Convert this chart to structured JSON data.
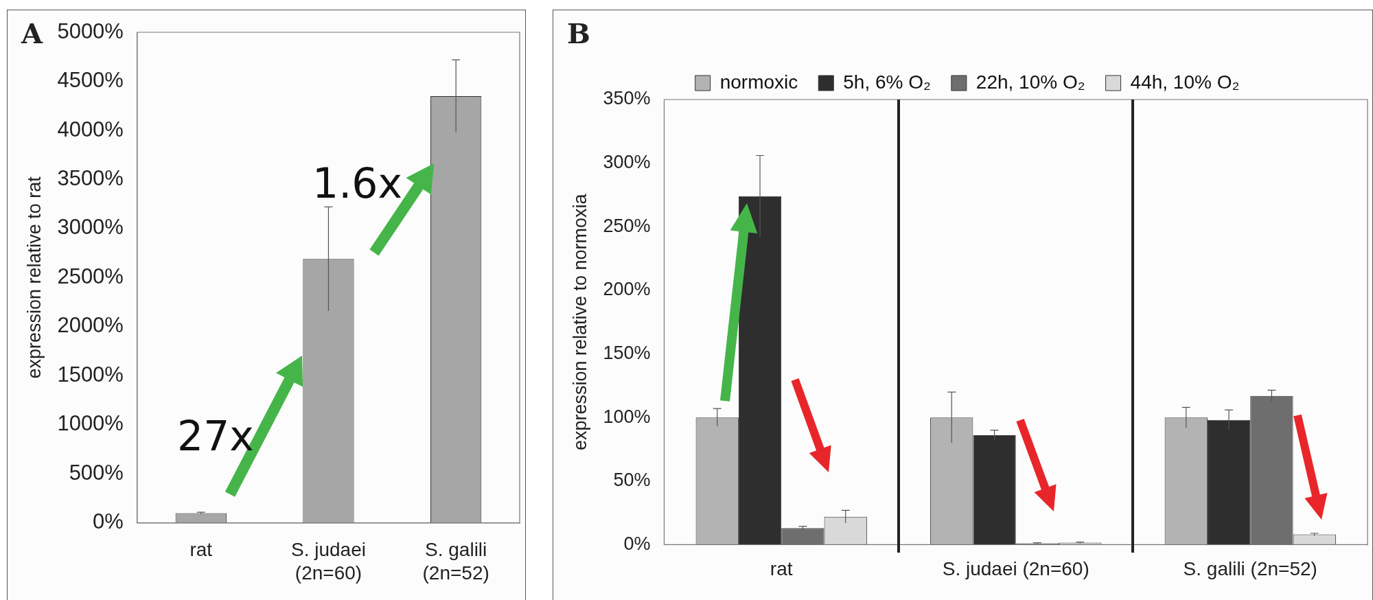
{
  "chart_data": [
    {
      "type": "bar",
      "title": "A",
      "categories": [
        "rat",
        "S. judaei (2n=60)",
        "S. galili (2n=52)"
      ],
      "values": [
        100,
        2690,
        4350
      ],
      "errors": [
        10,
        530,
        370
      ],
      "color": "#a6a6a6",
      "ylabel": "expression relative to rat",
      "ylim": [
        0,
        5000
      ],
      "yticks": [
        {
          "value": 0,
          "label": "0%"
        },
        {
          "value": 500,
          "label": "500%"
        },
        {
          "value": 1000,
          "label": "1000%"
        },
        {
          "value": 1500,
          "label": "1500%"
        },
        {
          "value": 2000,
          "label": "2000%"
        },
        {
          "value": 2500,
          "label": "2500%"
        },
        {
          "value": 3000,
          "label": "3000%"
        },
        {
          "value": 3500,
          "label": "3500%"
        },
        {
          "value": 4000,
          "label": "4000%"
        },
        {
          "value": 4500,
          "label": "4500%"
        },
        {
          "value": 5000,
          "label": "5000%"
        }
      ],
      "grid": false,
      "annotations": [
        "27x",
        "1.6x"
      ]
    },
    {
      "type": "bar",
      "title": "B",
      "categories": [
        "rat",
        "S. judaei (2n=60)",
        "S. galili (2n=52)"
      ],
      "series": [
        {
          "name": "normoxic",
          "color": "#b3b3b3",
          "values": [
            100,
            100,
            100
          ],
          "errors": [
            7,
            20,
            8
          ]
        },
        {
          "name": "5h, 6% O₂",
          "color": "#2e2e2e",
          "values": [
            274,
            86,
            98
          ],
          "errors": [
            32,
            4,
            8
          ]
        },
        {
          "name": "22h, 10% O₂",
          "color": "#6e6e6e",
          "values": [
            13,
            1,
            117
          ],
          "errors": [
            1.5,
            0.5,
            4.5
          ]
        },
        {
          "name": "44h, 10% O₂",
          "color": "#d9d9d9",
          "values": [
            22,
            1.5,
            8
          ],
          "errors": [
            5,
            0.5,
            1
          ]
        }
      ],
      "ylabel": "expression relative to normoxia",
      "ylim": [
        0,
        350
      ],
      "yticks": [
        {
          "value": 0,
          "label": "0%"
        },
        {
          "value": 50,
          "label": "50%"
        },
        {
          "value": 100,
          "label": "100%"
        },
        {
          "value": 150,
          "label": "150%"
        },
        {
          "value": 200,
          "label": "200%"
        },
        {
          "value": 250,
          "label": "250%"
        },
        {
          "value": 300,
          "label": "300%"
        },
        {
          "value": 350,
          "label": "350%"
        }
      ],
      "grid": false,
      "legend": "top"
    }
  ]
}
